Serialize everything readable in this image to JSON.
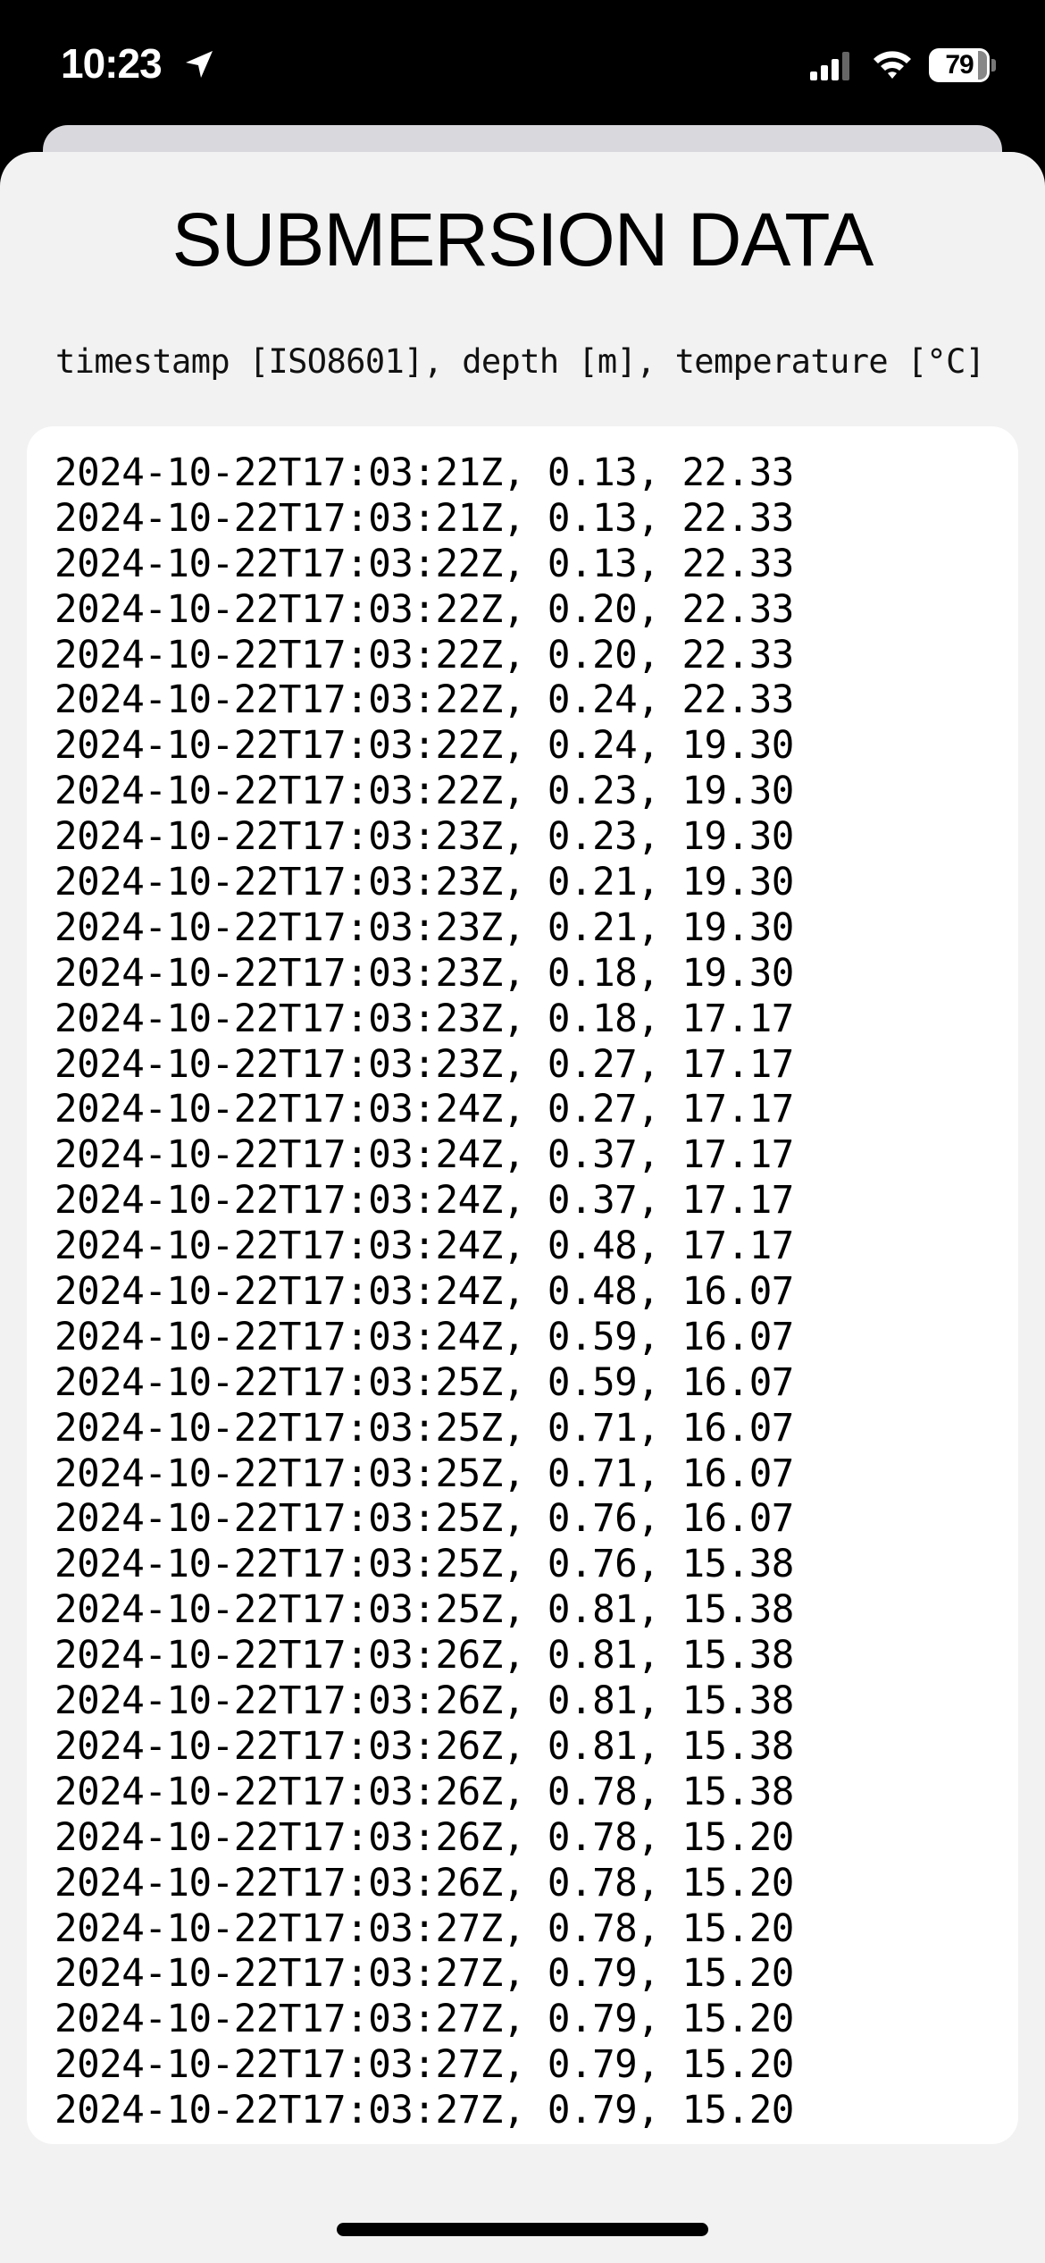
{
  "status_bar": {
    "time": "10:23",
    "battery_level": "79"
  },
  "title": "SUBMERSION DATA",
  "header": "timestamp [ISO8601], depth [m], temperature [°C]",
  "rows": [
    "2024-10-22T17:03:21Z, 0.13, 22.33",
    "2024-10-22T17:03:21Z, 0.13, 22.33",
    "2024-10-22T17:03:22Z, 0.13, 22.33",
    "2024-10-22T17:03:22Z, 0.20, 22.33",
    "2024-10-22T17:03:22Z, 0.20, 22.33",
    "2024-10-22T17:03:22Z, 0.24, 22.33",
    "2024-10-22T17:03:22Z, 0.24, 19.30",
    "2024-10-22T17:03:22Z, 0.23, 19.30",
    "2024-10-22T17:03:23Z, 0.23, 19.30",
    "2024-10-22T17:03:23Z, 0.21, 19.30",
    "2024-10-22T17:03:23Z, 0.21, 19.30",
    "2024-10-22T17:03:23Z, 0.18, 19.30",
    "2024-10-22T17:03:23Z, 0.18, 17.17",
    "2024-10-22T17:03:23Z, 0.27, 17.17",
    "2024-10-22T17:03:24Z, 0.27, 17.17",
    "2024-10-22T17:03:24Z, 0.37, 17.17",
    "2024-10-22T17:03:24Z, 0.37, 17.17",
    "2024-10-22T17:03:24Z, 0.48, 17.17",
    "2024-10-22T17:03:24Z, 0.48, 16.07",
    "2024-10-22T17:03:24Z, 0.59, 16.07",
    "2024-10-22T17:03:25Z, 0.59, 16.07",
    "2024-10-22T17:03:25Z, 0.71, 16.07",
    "2024-10-22T17:03:25Z, 0.71, 16.07",
    "2024-10-22T17:03:25Z, 0.76, 16.07",
    "2024-10-22T17:03:25Z, 0.76, 15.38",
    "2024-10-22T17:03:25Z, 0.81, 15.38",
    "2024-10-22T17:03:26Z, 0.81, 15.38",
    "2024-10-22T17:03:26Z, 0.81, 15.38",
    "2024-10-22T17:03:26Z, 0.81, 15.38",
    "2024-10-22T17:03:26Z, 0.78, 15.38",
    "2024-10-22T17:03:26Z, 0.78, 15.20",
    "2024-10-22T17:03:26Z, 0.78, 15.20",
    "2024-10-22T17:03:27Z, 0.78, 15.20",
    "2024-10-22T17:03:27Z, 0.79, 15.20",
    "2024-10-22T17:03:27Z, 0.79, 15.20",
    "2024-10-22T17:03:27Z, 0.79, 15.20",
    "2024-10-22T17:03:27Z, 0.79, 15.20"
  ],
  "colors": {
    "status_bar_bg": "#000000",
    "sheet_bg": "#f2f2f2",
    "card_bg": "#ffffff",
    "text": "#000000"
  }
}
